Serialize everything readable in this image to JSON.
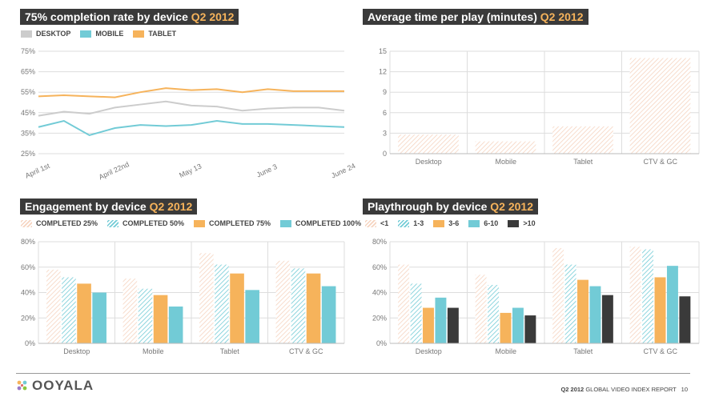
{
  "colors": {
    "desktop": "#cccccc",
    "mobile": "#72cbd6",
    "tablet": "#f6b35b",
    "peach": "#f6d4c0",
    "teal": "#72cbd6",
    "orange": "#f6b35b",
    "dark": "#3a3a3a",
    "grid": "#dddddd",
    "axis_text": "#777777"
  },
  "chart_data": [
    {
      "id": "completion",
      "type": "line",
      "title": "75% completion rate by device",
      "title_suffix": "Q2 2012",
      "xlabel": "",
      "ylabel": "",
      "ylim": [
        25,
        75
      ],
      "yticks": [
        "25%",
        "35%",
        "45%",
        "55%",
        "65%",
        "75%"
      ],
      "x": [
        "April 1st",
        "",
        "",
        "April 22nd",
        "",
        "",
        "May 13",
        "",
        "",
        "June 3",
        "",
        "",
        "June 24"
      ],
      "series": [
        {
          "name": "DESKTOP",
          "style": "desktop",
          "values": [
            43.5,
            45.5,
            44.5,
            47.5,
            49,
            50.5,
            48.5,
            48,
            46,
            47,
            47.5,
            47.5,
            46
          ]
        },
        {
          "name": "MOBILE",
          "style": "mobile",
          "values": [
            38,
            41,
            34,
            37.5,
            39,
            38.5,
            39,
            41,
            39.5,
            39.5,
            39,
            38.5,
            38
          ]
        },
        {
          "name": "TABLET",
          "style": "tablet",
          "values": [
            53,
            53.5,
            53,
            52.5,
            55,
            57,
            56,
            56.5,
            55,
            56.5,
            55.5,
            55.5,
            55.5
          ]
        }
      ],
      "legend": "top-left",
      "grid": true
    },
    {
      "id": "avgtime",
      "type": "bar",
      "title": "Average time per play (minutes)",
      "title_suffix": "Q2 2012",
      "xlabel": "",
      "ylabel": "",
      "ylim": [
        0,
        15
      ],
      "yticks": [
        "0",
        "3",
        "6",
        "9",
        "12",
        "15"
      ],
      "categories": [
        "Desktop",
        "Mobile",
        "Tablet",
        "CTV & GC"
      ],
      "series": [
        {
          "name": "",
          "style": "hatch-peach",
          "values": [
            2.8,
            1.8,
            4.0,
            14.0
          ]
        }
      ],
      "grid": true
    },
    {
      "id": "engagement",
      "type": "bar",
      "title": "Engagement by device",
      "title_suffix": "Q2 2012",
      "xlabel": "",
      "ylabel": "",
      "ylim": [
        0,
        80
      ],
      "yticks": [
        "0%",
        "20%",
        "40%",
        "60%",
        "80%"
      ],
      "categories": [
        "Desktop",
        "Mobile",
        "Tablet",
        "CTV & GC"
      ],
      "series": [
        {
          "name": "COMPLETED 25%",
          "style": "hatch-peach",
          "values": [
            58,
            51,
            71,
            65
          ]
        },
        {
          "name": "COMPLETED 50%",
          "style": "hatch-teal",
          "values": [
            52,
            43,
            62,
            59
          ]
        },
        {
          "name": "COMPLETED 75%",
          "style": "solid-orange",
          "values": [
            47,
            38,
            55,
            55
          ]
        },
        {
          "name": "COMPLETED 100%",
          "style": "solid-teal",
          "values": [
            40,
            29,
            42,
            45
          ]
        }
      ],
      "legend": "top-left",
      "grid": true
    },
    {
      "id": "playthrough",
      "type": "bar",
      "title": "Playthrough by device",
      "title_suffix": "Q2 2012",
      "xlabel": "",
      "ylabel": "",
      "ylim": [
        0,
        80
      ],
      "yticks": [
        "0%",
        "20%",
        "40%",
        "60%",
        "80%"
      ],
      "categories": [
        "Desktop",
        "Mobile",
        "Tablet",
        "CTV & GC"
      ],
      "series": [
        {
          "name": "<1",
          "style": "hatch-peach",
          "values": [
            62,
            54,
            75,
            76
          ]
        },
        {
          "name": "1-3",
          "style": "hatch-teal",
          "values": [
            47,
            46,
            62,
            74
          ]
        },
        {
          "name": "3-6",
          "style": "solid-orange",
          "values": [
            28,
            24,
            50,
            52
          ]
        },
        {
          "name": "6-10",
          "style": "solid-teal",
          "values": [
            36,
            28,
            45,
            61
          ]
        },
        {
          "name": ">10",
          "style": "solid-dark",
          "values": [
            28,
            22,
            38,
            37
          ]
        }
      ],
      "legend": "top-left",
      "grid": true
    }
  ],
  "footer": {
    "logo": "OOYALA",
    "quarter": "Q2 2012",
    "report": "GLOBAL VIDEO INDEX REPORT",
    "page": "10"
  }
}
